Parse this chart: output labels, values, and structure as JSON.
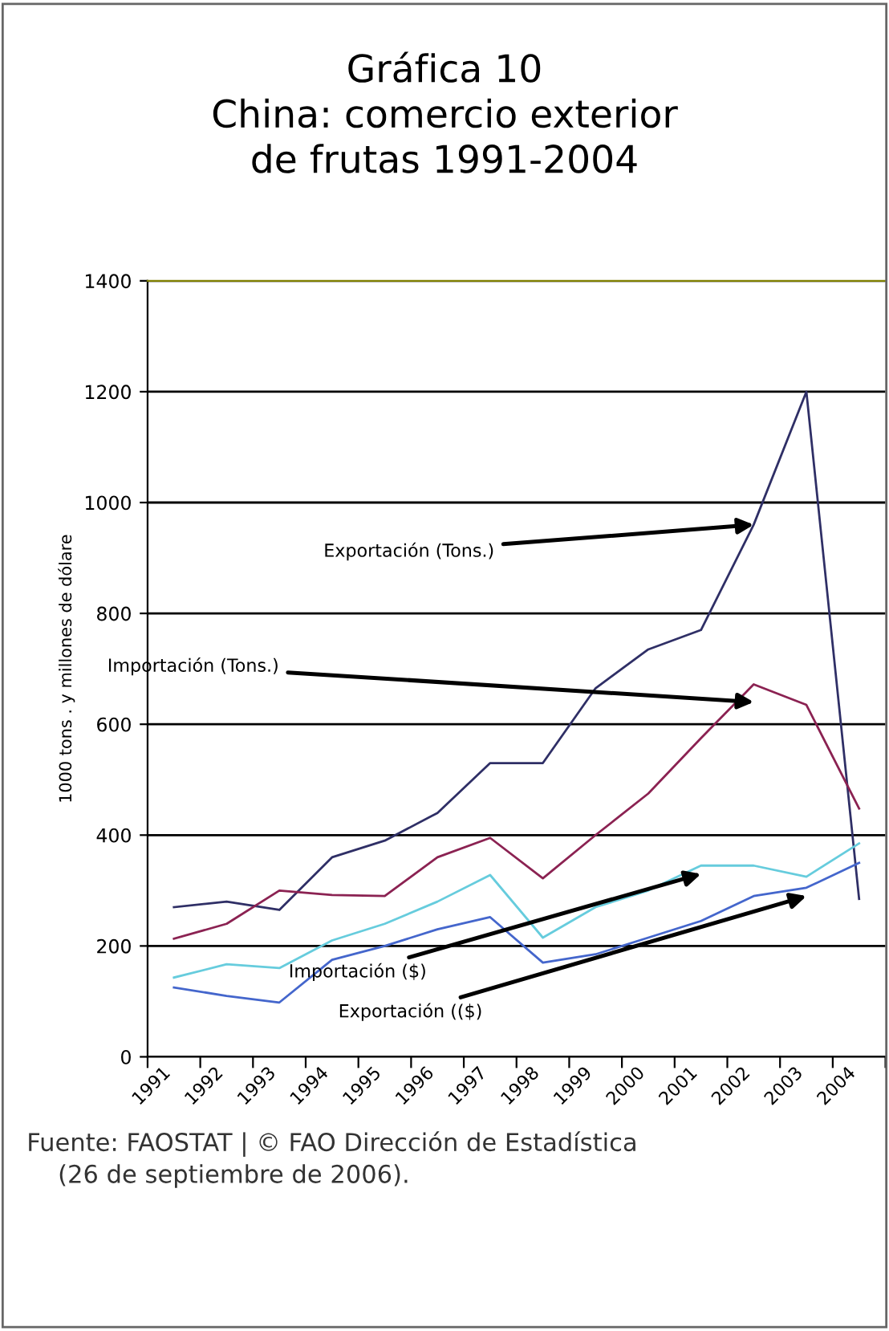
{
  "chart_data": {
    "type": "line",
    "title": "Gráfica 10\nChina: comercio exterior\nde frutas 1991-2004",
    "ylabel": "1000 tons . y millones de dólare",
    "categories": [
      "1991",
      "1992",
      "1993",
      "1994",
      "1995",
      "1996",
      "1997",
      "1998",
      "1999",
      "2000",
      "2001",
      "2002",
      "2003",
      "2004"
    ],
    "series": [
      {
        "color": "#2f2f66",
        "values": [
          270,
          280,
          265,
          360,
          390,
          440,
          530,
          530,
          665,
          735,
          770,
          960,
          1200,
          285
        ]
      },
      {
        "color": "#8b2252",
        "values": [
          213,
          240,
          300,
          292,
          290,
          360,
          395,
          322,
          400,
          475,
          575,
          672,
          635,
          448
        ]
      },
      {
        "color": "#66ccdd",
        "values": [
          143,
          167,
          160,
          210,
          240,
          280,
          328,
          215,
          270,
          300,
          345,
          345,
          325,
          385
        ]
      },
      {
        "color": "#4466cc",
        "values": [
          125,
          110,
          98,
          175,
          200,
          230,
          252,
          170,
          185,
          215,
          245,
          290,
          305,
          350
        ]
      }
    ],
    "ylim": [
      0,
      1400
    ],
    "yticks": [
      0,
      200,
      400,
      600,
      800,
      1000,
      1200,
      1400
    ],
    "grid": "y",
    "legend": false,
    "marker": "none",
    "line_style": "solid",
    "annotations": [
      {
        "text": "Exportación (Tons.)",
        "x": "2002",
        "y": 960
      },
      {
        "text": "Importación (Tons.)",
        "x": "2002",
        "y": 640
      },
      {
        "text": "Importación ($)",
        "x": "2001",
        "y": 330
      },
      {
        "text": "Exportación (($)",
        "x": "2003",
        "y": 290
      },
      "Fuente: FAOSTAT | © FAO Dirección de Estadística\n    (26 de septiembre de 2006)."
    ]
  }
}
